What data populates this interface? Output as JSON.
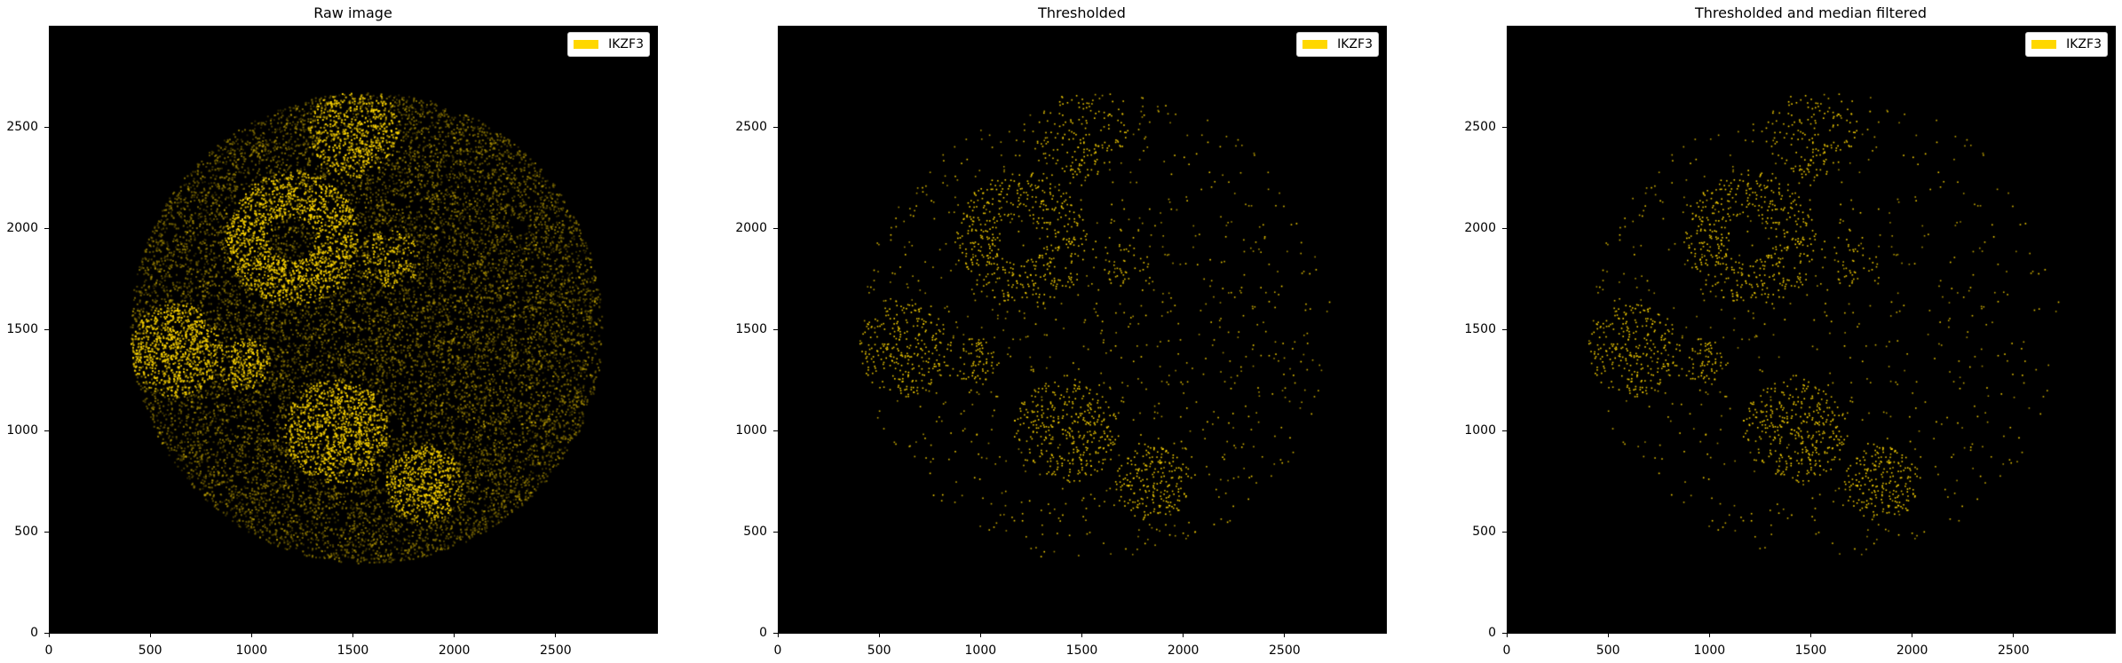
{
  "chart_data": [
    {
      "type": "heatmap",
      "title": "Raw image",
      "legend": [
        "IKZF3"
      ],
      "legend_placement": "top-right",
      "xlim": [
        0,
        3000
      ],
      "ylim": [
        0,
        3000
      ],
      "xticks": [
        0,
        500,
        1000,
        1500,
        2000,
        2500
      ],
      "yticks": [
        0,
        500,
        1000,
        1500,
        2000,
        2500
      ],
      "mode": "raw"
    },
    {
      "type": "heatmap",
      "title": "Thresholded",
      "legend": [
        "IKZF3"
      ],
      "legend_placement": "top-right",
      "xlim": [
        0,
        3000
      ],
      "ylim": [
        0,
        3000
      ],
      "xticks": [
        0,
        500,
        1000,
        1500,
        2000,
        2500
      ],
      "yticks": [
        0,
        500,
        1000,
        1500,
        2000,
        2500
      ],
      "mode": "thresholded"
    },
    {
      "type": "heatmap",
      "title": "Thresholded and median filtered",
      "legend": [
        "IKZF3"
      ],
      "legend_placement": "top-right",
      "xlim": [
        0,
        3000
      ],
      "ylim": [
        0,
        3000
      ],
      "xticks": [
        0,
        500,
        1000,
        1500,
        2000,
        2500
      ],
      "yticks": [
        0,
        500,
        1000,
        1500,
        2000,
        2500
      ],
      "mode": "median"
    }
  ],
  "colors": {
    "marker": "#FFD700",
    "background": "#000000"
  }
}
